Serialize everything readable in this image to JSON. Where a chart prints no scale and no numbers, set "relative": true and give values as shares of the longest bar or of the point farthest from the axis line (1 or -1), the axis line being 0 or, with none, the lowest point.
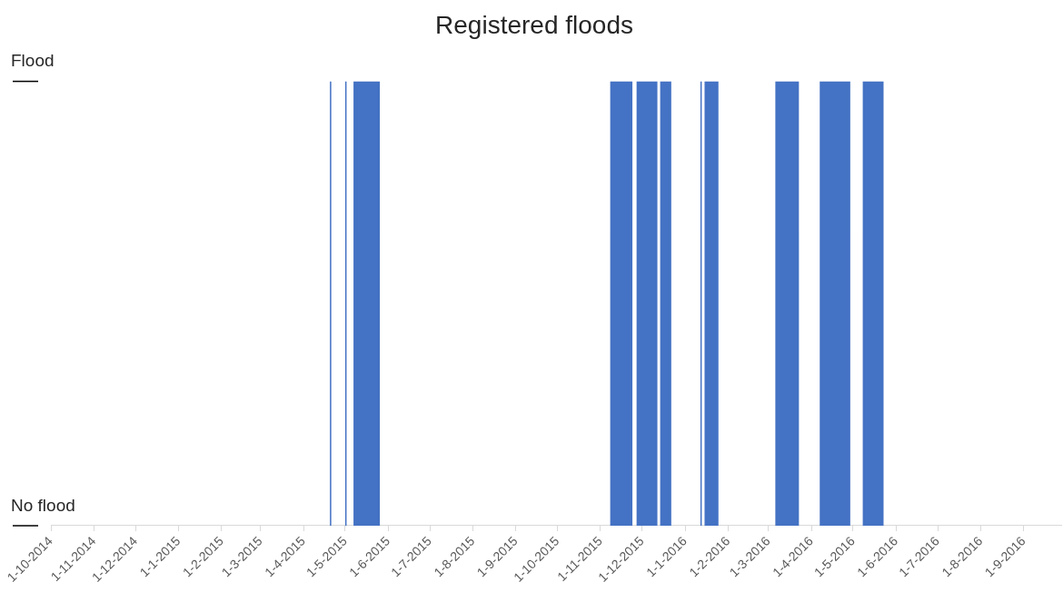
{
  "chart_data": {
    "type": "area",
    "title": "Registered floods",
    "x": [
      "2014-10-01",
      "2015-04-20",
      "2015-04-20",
      "2015-04-21",
      "2015-04-21",
      "2015-05-01",
      "2015-05-01",
      "2015-05-02",
      "2015-05-02",
      "2015-05-07",
      "2015-05-07",
      "2015-05-26",
      "2015-05-26",
      "2015-11-08",
      "2015-11-08",
      "2015-11-24",
      "2015-11-24",
      "2015-11-27",
      "2015-11-27",
      "2015-12-12",
      "2015-12-12",
      "2015-12-14",
      "2015-12-14",
      "2015-12-22",
      "2015-12-22",
      "2016-01-12",
      "2016-01-12",
      "2016-01-13",
      "2016-01-13",
      "2016-01-15",
      "2016-01-15",
      "2016-01-25",
      "2016-01-25",
      "2016-03-06",
      "2016-03-06",
      "2016-03-23",
      "2016-03-23",
      "2016-04-07",
      "2016-04-07",
      "2016-04-29",
      "2016-04-29",
      "2016-05-08",
      "2016-05-08",
      "2016-05-23",
      "2016-05-23",
      "2016-09-28"
    ],
    "series": [
      {
        "color": "#4472c4",
        "values": [
          0,
          0,
          1,
          1,
          0,
          0,
          1,
          1,
          0,
          0,
          1,
          1,
          0,
          0,
          1,
          1,
          0,
          0,
          1,
          1,
          0,
          0,
          1,
          1,
          0,
          0,
          1,
          1,
          0,
          0,
          1,
          1,
          0,
          0,
          1,
          1,
          0,
          0,
          1,
          1,
          0,
          0,
          1,
          1,
          0,
          0
        ]
      }
    ],
    "xlim": [
      "2014-10-01",
      "2016-09-28"
    ],
    "xticks": [
      {
        "value": "2014-10-01",
        "label": "1-10-2014"
      },
      {
        "value": "2014-11-01",
        "label": "1-11-2014"
      },
      {
        "value": "2014-12-01",
        "label": "1-12-2014"
      },
      {
        "value": "2015-01-01",
        "label": "1-1-2015"
      },
      {
        "value": "2015-02-01",
        "label": "1-2-2015"
      },
      {
        "value": "2015-03-01",
        "label": "1-3-2015"
      },
      {
        "value": "2015-04-01",
        "label": "1-4-2015"
      },
      {
        "value": "2015-05-01",
        "label": "1-5-2015"
      },
      {
        "value": "2015-06-01",
        "label": "1-6-2015"
      },
      {
        "value": "2015-07-01",
        "label": "1-7-2015"
      },
      {
        "value": "2015-08-01",
        "label": "1-8-2015"
      },
      {
        "value": "2015-09-01",
        "label": "1-9-2015"
      },
      {
        "value": "2015-10-01",
        "label": "1-10-2015"
      },
      {
        "value": "2015-11-01",
        "label": "1-11-2015"
      },
      {
        "value": "2015-12-01",
        "label": "1-12-2015"
      },
      {
        "value": "2016-01-01",
        "label": "1-1-2016"
      },
      {
        "value": "2016-02-01",
        "label": "1-2-2016"
      },
      {
        "value": "2016-03-01",
        "label": "1-3-2016"
      },
      {
        "value": "2016-04-01",
        "label": "1-4-2016"
      },
      {
        "value": "2016-05-01",
        "label": "1-5-2016"
      },
      {
        "value": "2016-06-01",
        "label": "1-6-2016"
      },
      {
        "value": "2016-07-01",
        "label": "1-7-2016"
      },
      {
        "value": "2016-08-01",
        "label": "1-8-2016"
      },
      {
        "value": "2016-09-01",
        "label": "1-9-2016"
      }
    ],
    "relative": true,
    "annotations": [
      "Flood",
      "No flood"
    ]
  }
}
